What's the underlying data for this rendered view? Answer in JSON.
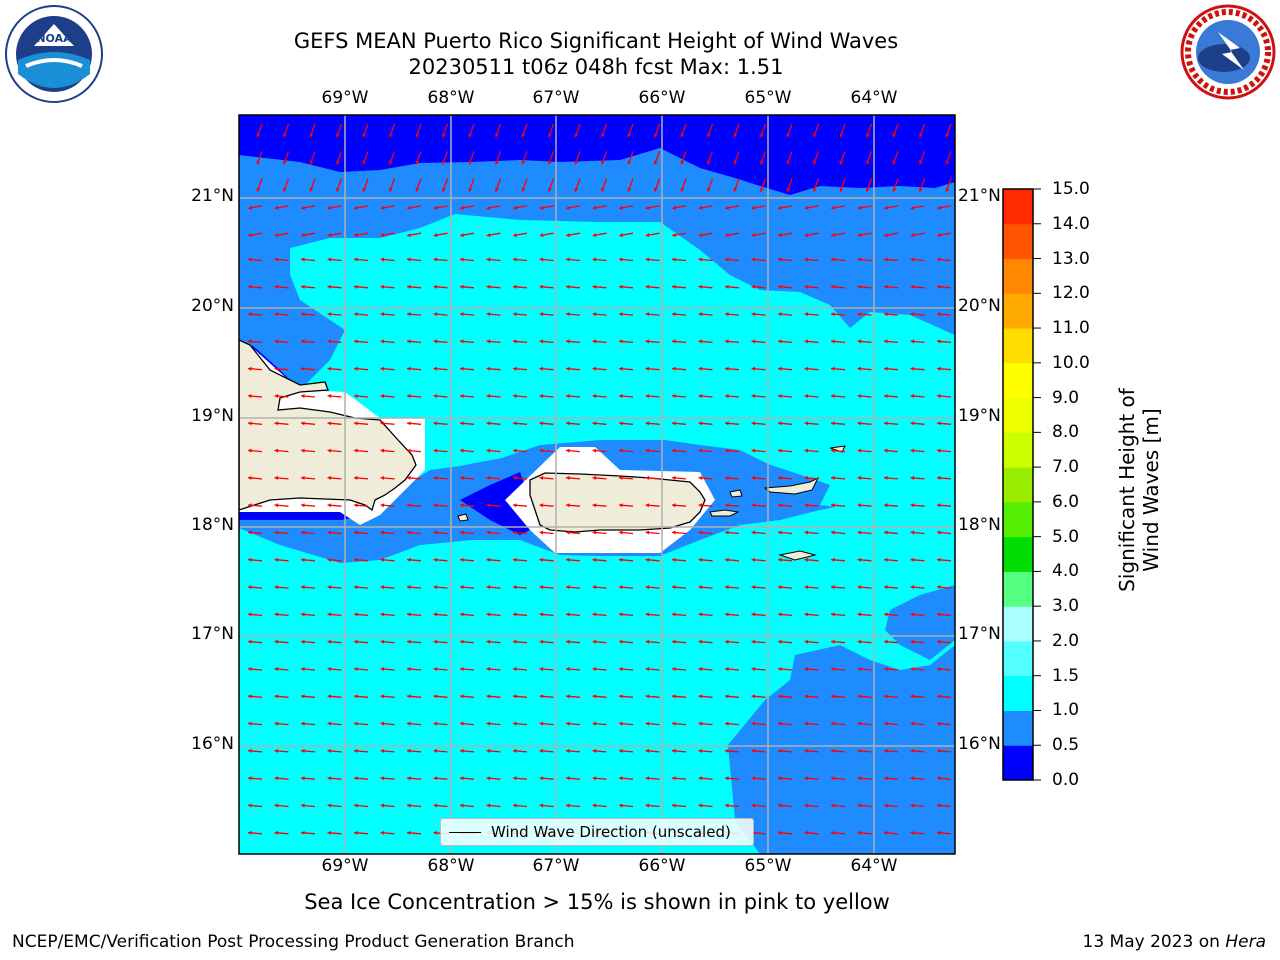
{
  "title_line1": "GEFS MEAN Puerto Rico Significant Height of Wind Waves",
  "title_line2": "20230511 t06z 048h fcst   Max: 1.51",
  "lon_labels": [
    "69°W",
    "68°W",
    "67°W",
    "66°W",
    "65°W",
    "64°W"
  ],
  "lat_labels": [
    "21°N",
    "20°N",
    "19°N",
    "18°N",
    "17°N",
    "16°N"
  ],
  "colorbar": {
    "label": "Significant Height of Wind Waves [m]",
    "ticks": [
      "15.0",
      "14.0",
      "13.0",
      "12.0",
      "11.0",
      "10.0",
      "9.0",
      "8.0",
      "7.0",
      "6.0",
      "5.0",
      "4.0",
      "3.0",
      "2.0",
      "1.5",
      "1.0",
      "0.5",
      "0.0"
    ],
    "colors_bottom_to_top": [
      "#0000ff",
      "#1e8cff",
      "#00ffff",
      "#55ffff",
      "#aaffff",
      "#55ff7f",
      "#00dd00",
      "#55ee00",
      "#99ee00",
      "#ccff00",
      "#eeff00",
      "#ffff00",
      "#ffdd00",
      "#ffaa00",
      "#ff8800",
      "#ff5500",
      "#ff2a00",
      "#ff0000"
    ]
  },
  "legend_label": "Wind Wave Direction (unscaled)",
  "caption": "Sea Ice Concentration > 15% is shown in pink to yellow",
  "footer_left": "NCEP/EMC/Verification Post Processing Product Generation Branch",
  "footer_right_prefix": "13 May 2023 on ",
  "footer_right_host": "Hera",
  "logos": [
    "noaa-logo",
    "national-weather-service-logo"
  ],
  "colors": {
    "deep_blue": "#0000ff",
    "mid_blue": "#1e8cff",
    "cyan": "#00ffff",
    "land": "#efedd9",
    "arrow": "#ff0000",
    "grid": "#b0b0b0"
  }
}
